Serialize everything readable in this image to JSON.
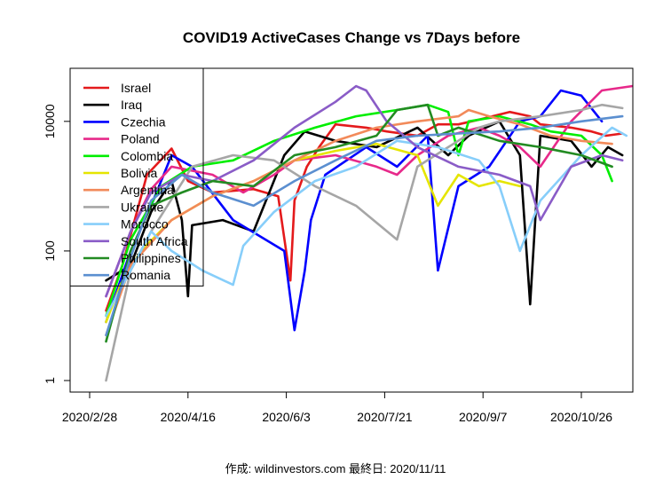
{
  "chart_data": {
    "type": "line",
    "title": "COVID19 ActiveCases Change vs 7Days before",
    "xlabel": "",
    "ylabel": "",
    "y_scale": "log",
    "ylim": [
      1,
      60000
    ],
    "x_ticks": [
      "2020/2/28",
      "2020/4/16",
      "2020/6/3",
      "2020/7/21",
      "2020/9/7",
      "2020/10/26"
    ],
    "y_ticks": [
      "1",
      "100",
      "10000"
    ],
    "y_tick_values": [
      1,
      100,
      10000
    ],
    "x_day_range": [
      -10,
      265
    ],
    "x_tick_days": [
      0,
      48,
      96,
      144,
      192,
      240
    ],
    "legend_position": "top-left",
    "series": [
      {
        "name": "Israel",
        "color": "#e41a1c",
        "days": [
          8,
          16,
          28,
          40,
          48,
          60,
          80,
          92,
          98,
          100,
          106,
          112,
          120,
          135,
          145,
          160,
          170,
          180,
          192,
          205,
          215,
          220,
          235,
          245,
          252,
          260
        ],
        "values": [
          12,
          60,
          1500,
          3800,
          1200,
          800,
          900,
          700,
          35,
          600,
          2000,
          4000,
          9000,
          8000,
          7000,
          6000,
          9000,
          9000,
          11000,
          14000,
          12000,
          9000,
          8000,
          7000,
          6000,
          6500
        ]
      },
      {
        "name": "Iraq",
        "color": "#000000",
        "days": [
          8,
          20,
          30,
          40,
          45,
          48,
          50,
          65,
          80,
          95,
          105,
          120,
          140,
          160,
          175,
          185,
          200,
          210,
          215,
          220,
          235,
          245,
          253,
          260
        ],
        "values": [
          35,
          60,
          400,
          1200,
          300,
          20,
          250,
          300,
          200,
          3000,
          7000,
          5000,
          4000,
          8000,
          3000,
          6000,
          10000,
          3000,
          15,
          6000,
          5000,
          2000,
          4000,
          3000
        ]
      },
      {
        "name": "Czechia",
        "color": "#0000ff",
        "days": [
          8,
          20,
          30,
          40,
          50,
          70,
          95,
          100,
          105,
          108,
          115,
          135,
          150,
          165,
          170,
          180,
          195,
          210,
          220,
          230,
          240,
          250
        ],
        "values": [
          8,
          100,
          500,
          3000,
          2000,
          300,
          100,
          6,
          50,
          300,
          1500,
          4000,
          2000,
          6000,
          50,
          1000,
          2000,
          10000,
          12000,
          30000,
          25000,
          10000
        ]
      },
      {
        "name": "Poland",
        "color": "#e7298a",
        "days": [
          8,
          20,
          30,
          40,
          60,
          75,
          90,
          100,
          120,
          140,
          150,
          160,
          175,
          190,
          200,
          210,
          220,
          235,
          250,
          265
        ],
        "values": [
          20,
          200,
          900,
          2000,
          1500,
          800,
          1500,
          2500,
          3000,
          2000,
          1500,
          3000,
          6000,
          8000,
          6000,
          4000,
          2000,
          10000,
          30000,
          35000
        ]
      },
      {
        "name": "Colombia",
        "color": "#00ee00",
        "days": [
          8,
          20,
          35,
          50,
          70,
          90,
          110,
          130,
          150,
          165,
          175,
          180,
          185,
          200,
          215,
          225,
          240,
          250,
          255
        ],
        "values": [
          10,
          150,
          1000,
          2000,
          2500,
          5000,
          8000,
          12000,
          15000,
          18000,
          14000,
          3000,
          10000,
          12000,
          9000,
          7000,
          6000,
          3000,
          1200
        ]
      },
      {
        "name": "Bolivia",
        "color": "#e5e500",
        "days": [
          8,
          15,
          25,
          40,
          60,
          80,
          100,
          120,
          140,
          160,
          170,
          180,
          190,
          200,
          210
        ],
        "values": [
          8,
          30,
          100,
          300,
          700,
          1200,
          2500,
          3500,
          4500,
          3000,
          500,
          1500,
          1000,
          1200,
          1000
        ]
      },
      {
        "name": "Argentina",
        "color": "#f28a5a",
        "days": [
          8,
          20,
          40,
          60,
          80,
          100,
          120,
          140,
          160,
          180,
          185,
          195,
          210,
          225,
          240,
          255
        ],
        "values": [
          5,
          60,
          300,
          700,
          1200,
          2500,
          5000,
          8000,
          10000,
          12000,
          15000,
          12000,
          9000,
          6000,
          5000,
          4500
        ]
      },
      {
        "name": "Ukraine",
        "color": "#a6a6a6",
        "days": [
          8,
          20,
          30,
          50,
          70,
          90,
          110,
          130,
          150,
          160,
          175,
          190,
          200,
          220,
          240,
          250,
          260
        ],
        "values": [
          1,
          50,
          200,
          2000,
          3000,
          2500,
          1000,
          500,
          150,
          2000,
          4000,
          8000,
          10000,
          12000,
          15000,
          18000,
          16000
        ]
      },
      {
        "name": "Morocco",
        "color": "#87cefa",
        "days": [
          8,
          20,
          30,
          40,
          55,
          70,
          75,
          90,
          110,
          130,
          150,
          170,
          190,
          200,
          210,
          220,
          240,
          255,
          262
        ],
        "values": [
          10,
          50,
          200,
          100,
          50,
          30,
          120,
          400,
          1200,
          2000,
          5000,
          4000,
          2500,
          1000,
          100,
          600,
          3000,
          8000,
          6000
        ]
      },
      {
        "name": "South Africa",
        "color": "#8a5cc7",
        "days": [
          8,
          20,
          30,
          45,
          60,
          80,
          100,
          120,
          130,
          135,
          145,
          160,
          180,
          200,
          215,
          220,
          235,
          250,
          260
        ],
        "values": [
          20,
          200,
          800,
          1500,
          1200,
          2500,
          8000,
          20000,
          35000,
          30000,
          10000,
          4000,
          2000,
          1500,
          1000,
          300,
          2000,
          3000,
          2500
        ]
      },
      {
        "name": "Philippines",
        "color": "#228b22",
        "days": [
          8,
          20,
          30,
          45,
          60,
          80,
          100,
          120,
          140,
          150,
          165,
          170,
          180,
          200,
          220,
          240,
          255
        ],
        "values": [
          4,
          100,
          500,
          800,
          1200,
          1000,
          3000,
          4000,
          6000,
          15000,
          18000,
          6000,
          8000,
          5000,
          4000,
          3000,
          2000
        ]
      },
      {
        "name": "Romania",
        "color": "#5b8fd0",
        "days": [
          8,
          20,
          30,
          45,
          60,
          80,
          100,
          120,
          140,
          160,
          180,
          200,
          220,
          240,
          260
        ],
        "values": [
          5,
          80,
          600,
          1500,
          800,
          500,
          1200,
          2500,
          5000,
          6000,
          6500,
          7000,
          8000,
          10000,
          12000
        ]
      }
    ]
  },
  "credit": {
    "text": "作成: wildinvestors.com 最終日: 2020/11/11"
  }
}
